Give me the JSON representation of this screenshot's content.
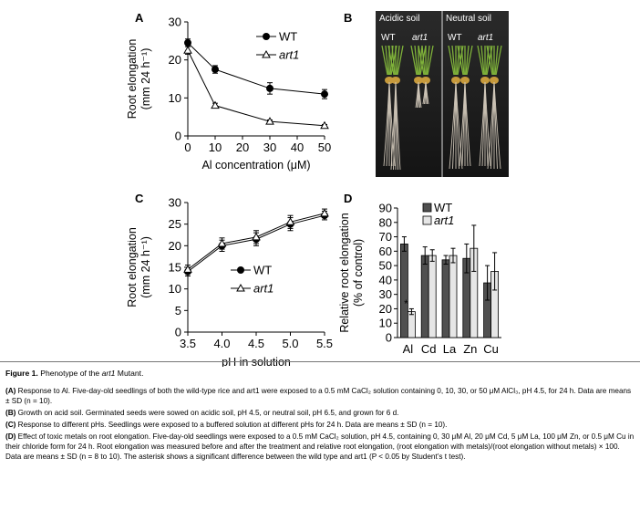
{
  "panels": {
    "A": "A",
    "B": "B",
    "C": "C",
    "D": "D"
  },
  "photo": {
    "left_label": "Acidic soil",
    "right_label": "Neutral soil",
    "sub_labels": [
      "WT",
      "art1",
      "WT",
      "art1"
    ]
  },
  "chart_data": [
    {
      "panel": "A",
      "type": "line",
      "xlabel": "Al concentration (μM)",
      "ylabel_line1": "Root elongation",
      "ylabel_line2": "(mm 24 h⁻¹)",
      "xlim": [
        0,
        50
      ],
      "ylim": [
        0,
        30
      ],
      "xticks": [
        "0",
        "10",
        "20",
        "30",
        "40",
        "50"
      ],
      "yticks": [
        "0",
        "10",
        "20",
        "30"
      ],
      "legend_position": "top-right",
      "series": [
        {
          "name": "WT",
          "marker": "filled-circle",
          "x": [
            0,
            10,
            30,
            50
          ],
          "y": [
            24.5,
            17.5,
            12.5,
            11.0
          ],
          "err": [
            1.0,
            1.0,
            1.5,
            1.2
          ]
        },
        {
          "name": "art1",
          "marker": "open-triangle",
          "x": [
            0,
            10,
            30,
            50
          ],
          "y": [
            22.5,
            8.0,
            3.8,
            2.7
          ],
          "err": [
            1.0,
            0.6,
            0.4,
            0.3
          ]
        }
      ]
    },
    {
      "panel": "C",
      "type": "line",
      "xlabel": "pH in solution",
      "ylabel_line1": "Root elongation",
      "ylabel_line2": "(mm 24 h⁻¹)",
      "xlim": [
        3.5,
        5.5
      ],
      "ylim": [
        0,
        30
      ],
      "xticks": [
        "3.5",
        "4.0",
        "4.5",
        "5.0",
        "5.5"
      ],
      "yticks": [
        "0",
        "5",
        "10",
        "15",
        "20",
        "25",
        "30"
      ],
      "legend_position": "center-right",
      "series": [
        {
          "name": "WT",
          "marker": "filled-circle",
          "x": [
            3.5,
            4.0,
            4.5,
            5.0,
            5.5
          ],
          "y": [
            14.0,
            20.0,
            21.5,
            25.0,
            27.0
          ],
          "err": [
            1.0,
            1.3,
            1.5,
            1.5,
            1.0
          ]
        },
        {
          "name": "art1",
          "marker": "open-triangle",
          "x": [
            3.5,
            4.0,
            4.5,
            5.0,
            5.5
          ],
          "y": [
            14.5,
            20.5,
            22.0,
            25.5,
            27.5
          ],
          "err": [
            1.0,
            1.3,
            1.5,
            1.5,
            1.0
          ]
        }
      ]
    },
    {
      "panel": "D",
      "type": "bar",
      "ylabel_line1": "Relative root elongation",
      "ylabel_line2": "(% of control)",
      "categories": [
        "Al",
        "Cd",
        "La",
        "Zn",
        "Cu"
      ],
      "ylim": [
        0,
        90
      ],
      "yticks": [
        "0",
        "10",
        "20",
        "30",
        "40",
        "50",
        "60",
        "70",
        "80",
        "90"
      ],
      "legend_position": "top-left",
      "annotation": "*",
      "series": [
        {
          "name": "WT",
          "color": "#505050",
          "values": [
            65,
            57,
            54,
            55,
            38
          ],
          "err": [
            5,
            6,
            3,
            10,
            12
          ]
        },
        {
          "name": "art1",
          "color": "#e6e6e6",
          "values": [
            18,
            57,
            57,
            62,
            46
          ],
          "err": [
            2,
            4,
            5,
            16,
            13
          ]
        }
      ]
    }
  ],
  "caption": {
    "title_prefix": "Figure 1.",
    "title_text": " Phenotype of the ",
    "title_italic": "art1",
    "title_suffix": " Mutant.",
    "A_label": "(A)",
    "A_text": " Response to Al. Five-day-old seedlings of both the wild-type rice and art1 were exposed to a 0.5 mM CaCl₂ solution containing 0, 10, 30, or 50 μM AlCl₃, pH 4.5, for 24 h. Data are means ± SD (n = 10).",
    "B_label": "(B)",
    "B_text": " Growth on acid soil. Germinated seeds were sowed on acidic soil, pH 4.5, or neutral soil, pH 6.5, and grown for 6 d.",
    "C_label": "(C)",
    "C_text": " Response to different pHs. Seedlings were exposed to a buffered solution at different pHs for 24 h. Data are means ± SD (n = 10).",
    "D_label": "(D)",
    "D_text": " Effect of toxic metals on root elongation. Five-day-old seedlings were exposed to a 0.5 mM CaCl₂ solution, pH 4.5, containing 0, 30 μM Al, 20 μM Cd, 5 μM La, 100 μM Zn, or 0.5 μM Cu in their chloride form for 24 h. Root elongation was measured before and after the treatment and relative root elongation, (root elongation with metals)/(root elongation without metals) × 100. Data are means ± SD (n = 8 to 10). The asterisk shows a significant difference between the wild type and art1 (P < 0.05 by Student’s t test)."
  }
}
